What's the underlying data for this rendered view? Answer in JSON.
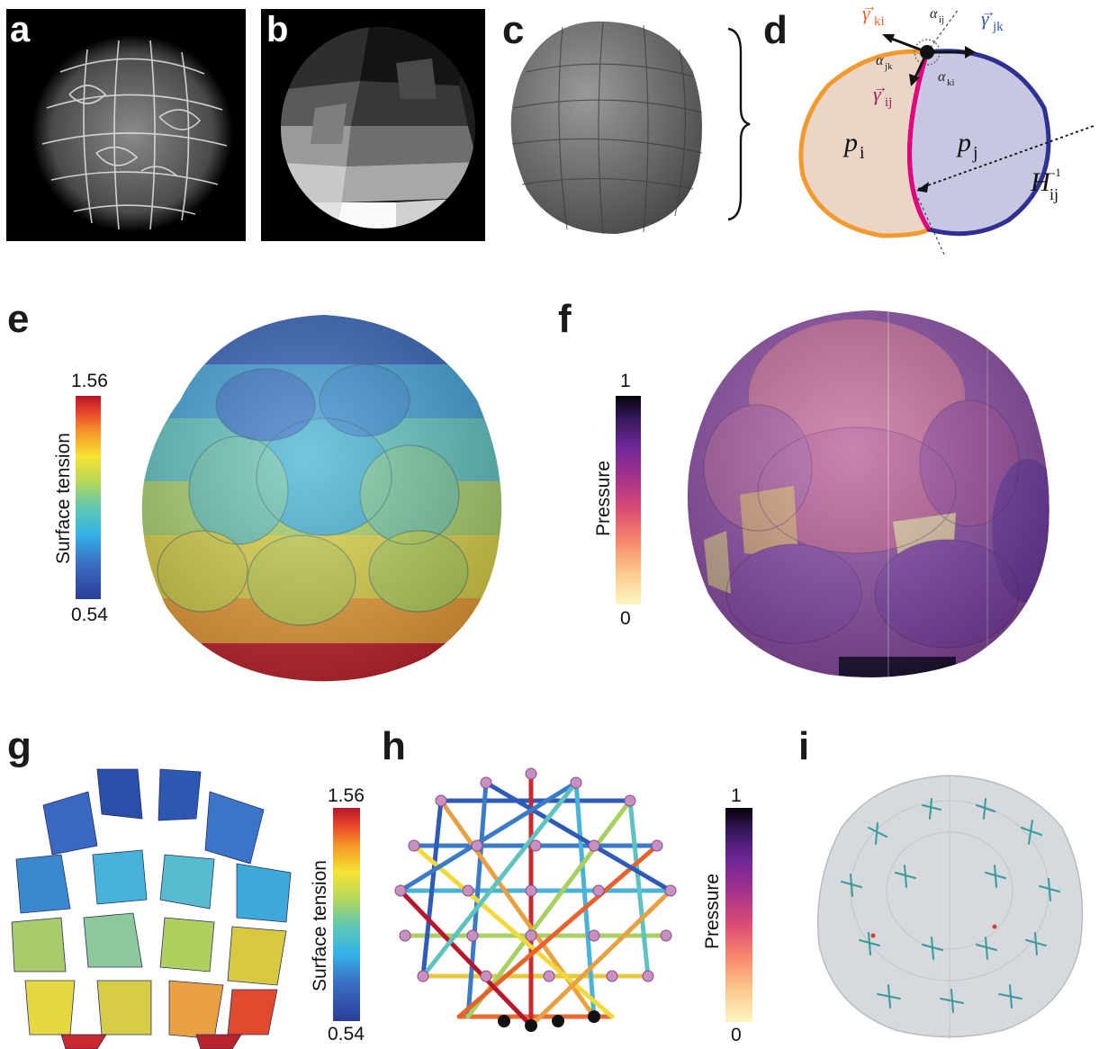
{
  "panels": {
    "a": {
      "label": "a"
    },
    "b": {
      "label": "b"
    },
    "c": {
      "label": "c"
    },
    "d": {
      "label": "d",
      "gamma_ki_sub": "ki",
      "gamma_jk_sub": "jk",
      "gamma_ij_sub": "ij",
      "alpha_ij_sub": "ij",
      "alpha_jk_sub": "jk",
      "alpha_ki_sub": "ki",
      "p_i_sub": "i",
      "p_j_sub": "j",
      "H_sub": "ij",
      "H_sup": "-1"
    },
    "e": {
      "label": "e",
      "colorbar_title": "Surface tension",
      "cb_max": "1.56",
      "cb_min": "0.54"
    },
    "f": {
      "label": "f",
      "colorbar_title": "Pressure",
      "cb_max": "1",
      "cb_min": "0"
    },
    "g": {
      "label": "g",
      "colorbar_title": "Surface tension",
      "cb_max": "1.56",
      "cb_min": "0.54"
    },
    "h": {
      "label": "h",
      "colorbar_title": "Pressure",
      "cb_max": "1",
      "cb_min": "0"
    },
    "i": {
      "label": "i"
    }
  },
  "colors": {
    "orange_cell": "#f29a2e",
    "blue_cell": "#2e3192",
    "pink_interface": "#e6007e",
    "gamma_ki": "#e8632c",
    "gamma_jk": "#2e5aa8",
    "gamma_ij": "#9c1d5e"
  },
  "icons": [
    "left-brace",
    "right-brace"
  ]
}
